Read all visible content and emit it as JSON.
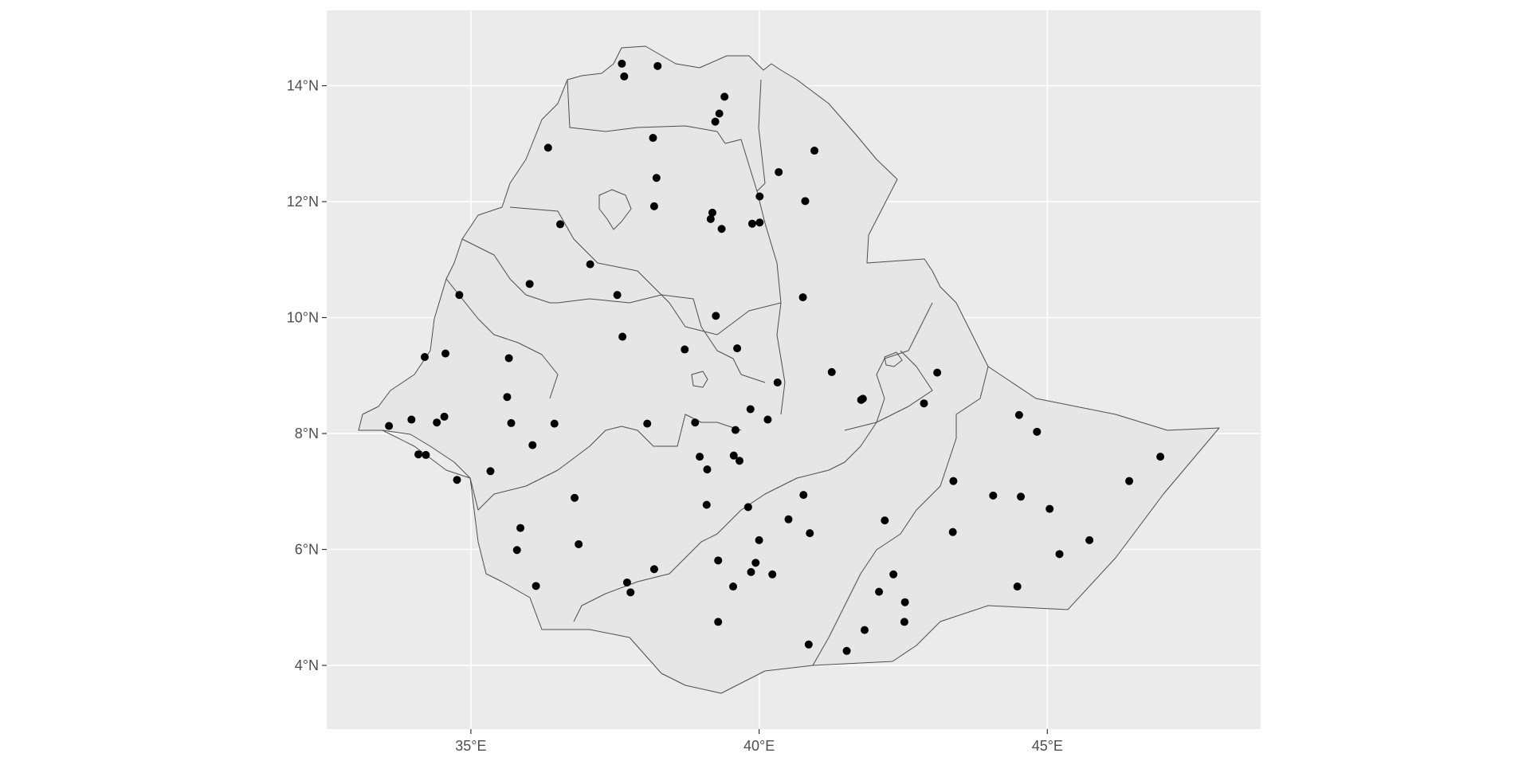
{
  "chart_data": {
    "type": "scatter",
    "title": "",
    "xlabel": "",
    "ylabel": "",
    "xlim": [
      32.5,
      48.7
    ],
    "ylim": [
      2.9,
      15.3
    ],
    "x_ticks": [
      {
        "value": 35,
        "label": "35°E"
      },
      {
        "value": 40,
        "label": "40°E"
      },
      {
        "value": 45,
        "label": "45°E"
      }
    ],
    "y_ticks": [
      {
        "value": 4,
        "label": "4°N"
      },
      {
        "value": 6,
        "label": "6°N"
      },
      {
        "value": 8,
        "label": "8°N"
      },
      {
        "value": 10,
        "label": "10°N"
      },
      {
        "value": 12,
        "label": "12°N"
      },
      {
        "value": 14,
        "label": "14°N"
      }
    ],
    "colors": {
      "panel": "#ebebeb",
      "grid": "#ffffff",
      "land": "#e6e6e6",
      "border": "#4d4d4d",
      "point": "#000000"
    },
    "points": [
      [
        37.62,
        14.38
      ],
      [
        37.66,
        14.16
      ],
      [
        38.24,
        14.34
      ],
      [
        39.4,
        13.81
      ],
      [
        39.31,
        13.52
      ],
      [
        39.24,
        13.38
      ],
      [
        36.34,
        12.93
      ],
      [
        38.16,
        13.1
      ],
      [
        40.96,
        12.88
      ],
      [
        38.22,
        12.41
      ],
      [
        40.34,
        12.51
      ],
      [
        40.01,
        12.09
      ],
      [
        40.8,
        12.01
      ],
      [
        38.18,
        11.92
      ],
      [
        39.19,
        11.81
      ],
      [
        39.16,
        11.7
      ],
      [
        39.35,
        11.53
      ],
      [
        39.88,
        11.62
      ],
      [
        40.01,
        11.64
      ],
      [
        36.55,
        11.61
      ],
      [
        37.07,
        10.92
      ],
      [
        36.02,
        10.58
      ],
      [
        37.54,
        10.39
      ],
      [
        40.76,
        10.35
      ],
      [
        34.8,
        10.39
      ],
      [
        39.25,
        10.03
      ],
      [
        34.2,
        9.32
      ],
      [
        34.56,
        9.38
      ],
      [
        35.66,
        9.3
      ],
      [
        37.63,
        9.67
      ],
      [
        38.71,
        9.45
      ],
      [
        39.62,
        9.47
      ],
      [
        40.32,
        8.88
      ],
      [
        41.26,
        9.06
      ],
      [
        43.09,
        9.05
      ],
      [
        41.77,
        8.58
      ],
      [
        41.8,
        8.6
      ],
      [
        42.86,
        8.52
      ],
      [
        35.63,
        8.63
      ],
      [
        39.85,
        8.42
      ],
      [
        40.15,
        8.24
      ],
      [
        39.59,
        8.06
      ],
      [
        33.58,
        8.13
      ],
      [
        33.97,
        8.24
      ],
      [
        34.41,
        8.19
      ],
      [
        34.54,
        8.29
      ],
      [
        35.7,
        8.18
      ],
      [
        36.45,
        8.17
      ],
      [
        38.06,
        8.17
      ],
      [
        38.89,
        8.19
      ],
      [
        36.07,
        7.8
      ],
      [
        34.09,
        7.64
      ],
      [
        34.22,
        7.63
      ],
      [
        38.97,
        7.6
      ],
      [
        39.56,
        7.62
      ],
      [
        39.66,
        7.53
      ],
      [
        39.1,
        7.38
      ],
      [
        35.34,
        7.35
      ],
      [
        34.76,
        7.2
      ],
      [
        44.51,
        8.32
      ],
      [
        44.82,
        8.03
      ],
      [
        46.96,
        7.6
      ],
      [
        46.42,
        7.18
      ],
      [
        43.37,
        7.18
      ],
      [
        44.06,
        6.93
      ],
      [
        44.54,
        6.91
      ],
      [
        36.8,
        6.89
      ],
      [
        40.77,
        6.94
      ],
      [
        45.04,
        6.7
      ],
      [
        39.09,
        6.77
      ],
      [
        39.81,
        6.73
      ],
      [
        40.51,
        6.52
      ],
      [
        42.18,
        6.5
      ],
      [
        35.86,
        6.37
      ],
      [
        43.36,
        6.3
      ],
      [
        40.88,
        6.28
      ],
      [
        40.0,
        6.16
      ],
      [
        35.8,
        5.99
      ],
      [
        36.87,
        6.09
      ],
      [
        45.21,
        5.92
      ],
      [
        45.73,
        6.16
      ],
      [
        39.29,
        5.81
      ],
      [
        39.94,
        5.77
      ],
      [
        38.18,
        5.66
      ],
      [
        39.86,
        5.61
      ],
      [
        40.23,
        5.57
      ],
      [
        42.33,
        5.57
      ],
      [
        37.71,
        5.43
      ],
      [
        37.77,
        5.26
      ],
      [
        39.55,
        5.36
      ],
      [
        42.08,
        5.27
      ],
      [
        42.53,
        5.09
      ],
      [
        44.48,
        5.36
      ],
      [
        36.13,
        5.37
      ],
      [
        39.29,
        4.75
      ],
      [
        42.52,
        4.75
      ],
      [
        41.83,
        4.61
      ],
      [
        40.86,
        4.36
      ],
      [
        41.52,
        4.25
      ]
    ]
  }
}
